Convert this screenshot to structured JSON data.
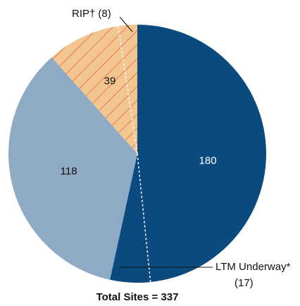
{
  "chart_data": {
    "type": "pie",
    "categories": [
      null,
      null,
      null
    ],
    "values": [
      180,
      118,
      39
    ],
    "colors": [
      "#0b4a7e",
      "#8eaac4",
      "#f3c690"
    ],
    "hatch_color": "#e2664e",
    "sub_slices": [
      {
        "label": "RIP†",
        "value": 8,
        "value_label": "(8)"
      },
      {
        "label": "LTM Underway*",
        "value": 17,
        "value_label": "(17)"
      }
    ],
    "note": "Total Sites = 337"
  }
}
